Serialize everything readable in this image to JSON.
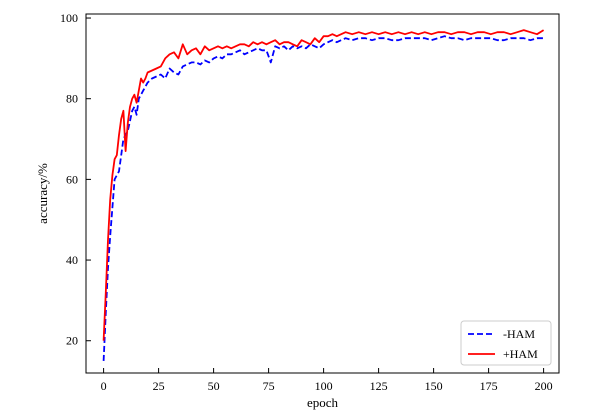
{
  "chart_data": {
    "type": "line",
    "title": "",
    "xlabel": "epoch",
    "ylabel": "accuracy/%",
    "xlim": [
      -8,
      207
    ],
    "ylim": [
      12,
      101
    ],
    "xticks": [
      0,
      25,
      50,
      75,
      100,
      125,
      150,
      175,
      200
    ],
    "yticks": [
      20,
      40,
      60,
      80,
      100
    ],
    "grid": false,
    "legend_position": "bottom-right",
    "series": [
      {
        "name": "-HAM",
        "color": "#0000ff",
        "style": "dashed",
        "x": [
          0,
          1,
          2,
          3,
          4,
          5,
          6,
          7,
          8,
          9,
          10,
          11,
          12,
          13,
          14,
          15,
          16,
          17,
          18,
          19,
          20,
          22,
          24,
          26,
          28,
          30,
          32,
          34,
          36,
          38,
          40,
          42,
          44,
          46,
          48,
          50,
          52,
          54,
          56,
          58,
          60,
          62,
          64,
          66,
          68,
          70,
          72,
          74,
          76,
          78,
          80,
          82,
          84,
          86,
          88,
          90,
          92,
          94,
          96,
          98,
          100,
          102,
          104,
          106,
          108,
          110,
          113,
          116,
          119,
          122,
          125,
          128,
          131,
          134,
          137,
          140,
          143,
          146,
          149,
          152,
          155,
          158,
          161,
          164,
          167,
          170,
          173,
          176,
          179,
          182,
          185,
          188,
          191,
          194,
          197,
          200
        ],
        "y": [
          15.0,
          27.0,
          38.0,
          46.0,
          53.0,
          60.0,
          61.0,
          62.0,
          66.0,
          70.0,
          71.0,
          72.0,
          74.5,
          77.0,
          78.0,
          76.0,
          80.0,
          81.0,
          82.0,
          83.0,
          84.0,
          85.0,
          85.5,
          86.0,
          85.0,
          87.5,
          86.5,
          86.0,
          88.0,
          88.5,
          89.0,
          89.0,
          88.5,
          89.5,
          89.0,
          90.0,
          90.5,
          90.0,
          91.0,
          91.0,
          91.5,
          92.0,
          91.0,
          91.5,
          92.0,
          92.5,
          92.0,
          92.0,
          89.0,
          93.0,
          92.5,
          93.0,
          92.0,
          93.0,
          92.5,
          93.0,
          92.5,
          93.5,
          93.0,
          92.5,
          93.5,
          94.0,
          94.5,
          94.0,
          94.5,
          95.0,
          94.5,
          95.0,
          95.0,
          94.5,
          95.0,
          95.0,
          94.5,
          94.5,
          95.0,
          95.0,
          95.0,
          95.0,
          94.5,
          95.0,
          95.5,
          95.0,
          95.0,
          94.5,
          95.0,
          95.0,
          95.0,
          95.0,
          94.5,
          94.5,
          95.0,
          95.0,
          95.0,
          94.5,
          95.0,
          95.0
        ]
      },
      {
        "name": "+HAM",
        "color": "#ff0000",
        "style": "solid",
        "x": [
          0,
          1,
          2,
          3,
          4,
          5,
          6,
          7,
          8,
          9,
          10,
          11,
          12,
          13,
          14,
          15,
          16,
          17,
          18,
          19,
          20,
          22,
          24,
          26,
          28,
          30,
          32,
          34,
          36,
          38,
          40,
          42,
          44,
          46,
          48,
          50,
          52,
          54,
          56,
          58,
          60,
          62,
          64,
          66,
          68,
          70,
          72,
          74,
          76,
          78,
          80,
          82,
          84,
          86,
          88,
          90,
          92,
          94,
          96,
          98,
          100,
          102,
          104,
          106,
          108,
          110,
          113,
          116,
          119,
          122,
          125,
          128,
          131,
          134,
          137,
          140,
          143,
          146,
          149,
          152,
          155,
          158,
          161,
          164,
          167,
          170,
          173,
          176,
          179,
          182,
          185,
          188,
          191,
          194,
          197,
          200
        ],
        "y": [
          20.0,
          32.0,
          45.0,
          55.0,
          61.0,
          65.0,
          66.0,
          71.0,
          75.0,
          77.0,
          67.0,
          74.0,
          78.0,
          80.0,
          81.0,
          79.0,
          82.0,
          85.0,
          84.0,
          85.0,
          86.5,
          87.0,
          87.5,
          88.0,
          90.0,
          91.0,
          91.5,
          90.0,
          93.5,
          91.0,
          92.0,
          92.5,
          91.0,
          93.0,
          92.0,
          92.5,
          93.0,
          92.5,
          93.0,
          92.5,
          93.0,
          93.5,
          93.5,
          93.0,
          94.0,
          93.5,
          94.0,
          93.5,
          94.0,
          94.5,
          93.5,
          94.0,
          94.0,
          93.5,
          93.0,
          94.5,
          94.0,
          93.5,
          95.0,
          94.0,
          95.5,
          95.5,
          96.0,
          95.5,
          96.0,
          96.5,
          96.0,
          96.5,
          96.0,
          96.5,
          96.0,
          96.5,
          96.0,
          96.5,
          96.0,
          96.5,
          96.0,
          96.5,
          96.0,
          96.5,
          96.5,
          96.0,
          96.5,
          96.5,
          96.0,
          96.5,
          96.5,
          96.0,
          96.5,
          96.5,
          96.0,
          96.5,
          97.0,
          96.5,
          96.0,
          97.0
        ]
      }
    ]
  }
}
